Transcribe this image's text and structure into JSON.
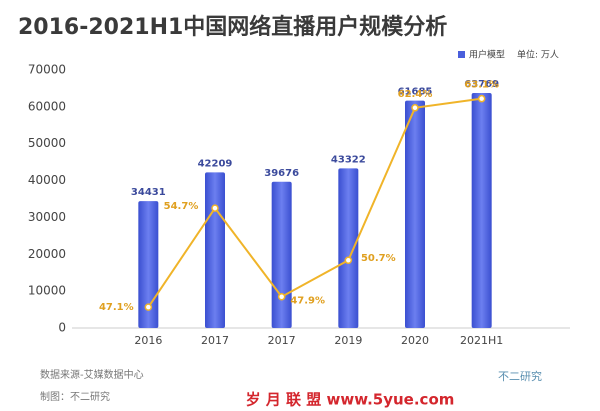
{
  "chart_data": {
    "type": "bar-line",
    "title": "2016-2021H1中国网络直播用户规模分析",
    "unit_note": "单位: 万人",
    "categories": [
      "2016",
      "2017",
      "2017",
      "2019",
      "2020",
      "2021H1"
    ],
    "series": [
      {
        "name": "用户模型",
        "color": "#4a5fdc",
        "type": "bar",
        "values": [
          34431,
          42209,
          39676,
          43322,
          61685,
          63769
        ]
      },
      {
        "color": "#f0b429",
        "type": "line",
        "axis": "y2",
        "values": [
          47.1,
          54.7,
          47.9,
          50.7,
          62.4,
          63.1
        ],
        "value_labels": [
          "47.1%",
          "54.7%",
          "47.9%",
          "50.7%",
          "62.4%",
          "63.1%"
        ]
      }
    ],
    "ylim": [
      0,
      70000
    ],
    "yticks": [
      0,
      10000,
      20000,
      30000,
      40000,
      50000,
      60000,
      70000
    ],
    "y2lim": [
      45.5,
      65.3
    ],
    "source": "数据来源-艾媒数据中心",
    "credit": "制图：不二研究",
    "annotations": [
      "不二研究",
      "岁 月 联 盟  www.5yue.com"
    ]
  }
}
